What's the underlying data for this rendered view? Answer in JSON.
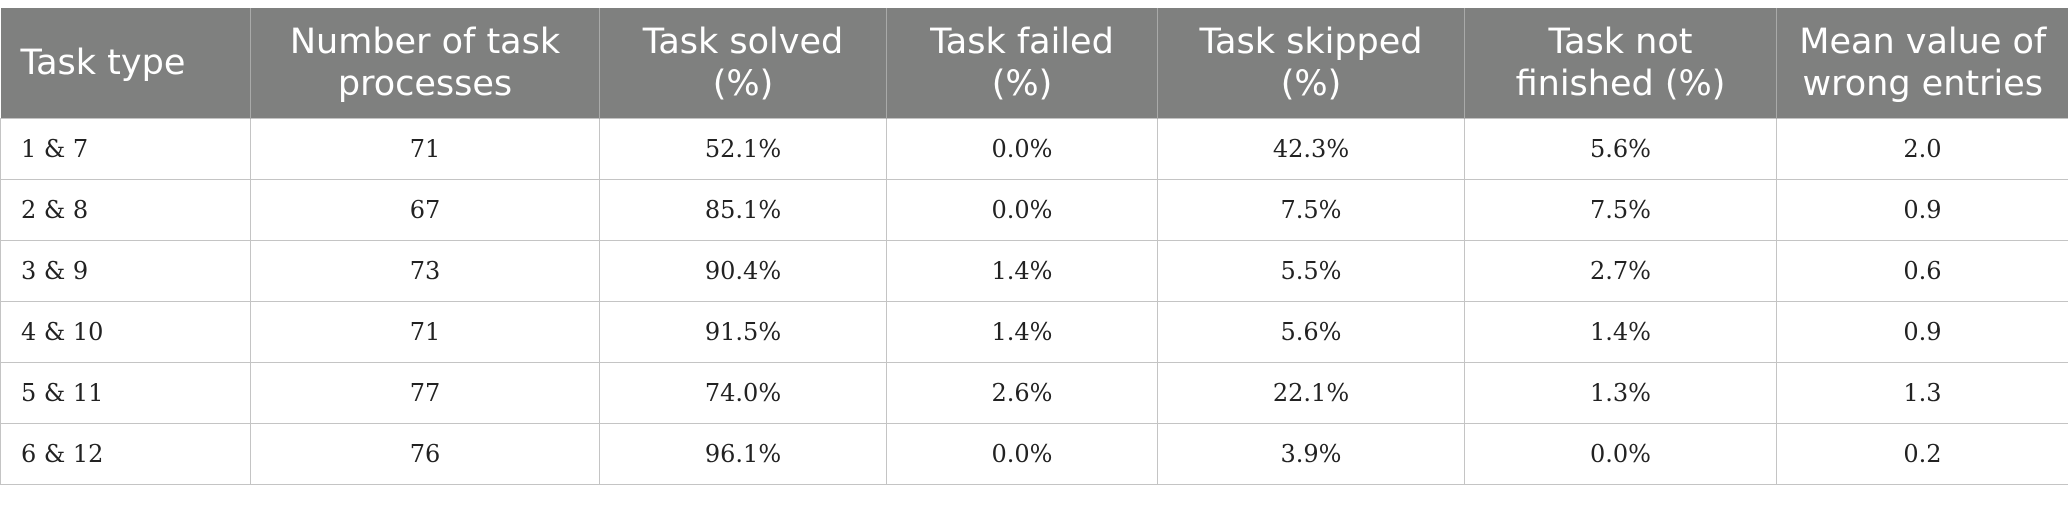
{
  "table": {
    "headers": [
      "Task type",
      "Number of task processes",
      "Task solved (%)",
      "Task failed (%)",
      "Task skipped (%)",
      "Task not finished (%)",
      "Mean value of wrong entries"
    ],
    "rows": [
      [
        "1 & 7",
        "71",
        "52.1%",
        "0.0%",
        "42.3%",
        "5.6%",
        "2.0"
      ],
      [
        "2 & 8",
        "67",
        "85.1%",
        "0.0%",
        "7.5%",
        "7.5%",
        "0.9"
      ],
      [
        "3 & 9",
        "73",
        "90.4%",
        "1.4%",
        "5.5%",
        "2.7%",
        "0.6"
      ],
      [
        "4 & 10",
        "71",
        "91.5%",
        "1.4%",
        "5.6%",
        "1.4%",
        "0.9"
      ],
      [
        "5 & 11",
        "77",
        "74.0%",
        "2.6%",
        "22.1%",
        "1.3%",
        "1.3"
      ],
      [
        "6 & 12",
        "76",
        "96.1%",
        "0.0%",
        "3.9%",
        "0.0%",
        "0.2"
      ]
    ]
  }
}
